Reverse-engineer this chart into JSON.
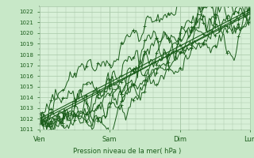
{
  "bg_color": "#c8e8c8",
  "plot_bg_color": "#d8f0d8",
  "grid_color": "#a8c8a8",
  "line_color": "#1a5c1a",
  "marker_color": "#1a5c1a",
  "title": "Pression niveau de la mer( hPa )",
  "xlabel": "Pression niveau de la mer( hPa )",
  "x_ticks_labels": [
    "Ven",
    "Sam",
    "Dim",
    "Lun"
  ],
  "x_ticks_pos": [
    0,
    48,
    96,
    144
  ],
  "ylim": [
    1011,
    1022.5
  ],
  "yticks": [
    1011,
    1012,
    1013,
    1014,
    1015,
    1016,
    1017,
    1018,
    1019,
    1020,
    1021,
    1022
  ],
  "total_hours": 168
}
